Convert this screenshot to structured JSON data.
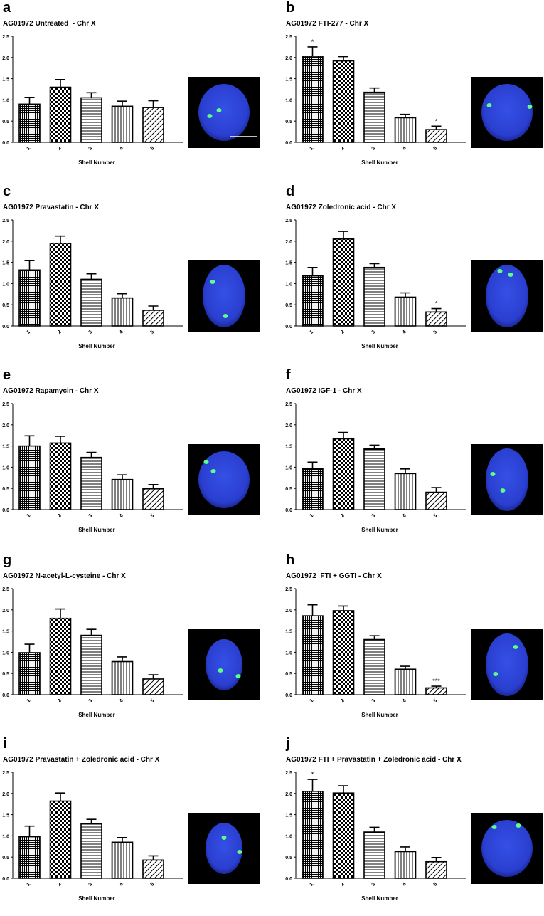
{
  "colors": {
    "bar_stroke": "#000000",
    "cell_background": "#000000",
    "nucleus": "#2a3fd0",
    "chromosome_signal": "#5cff8a"
  },
  "chart_data": [
    {
      "panel": "a",
      "type": "bar",
      "title": "AG01972 Untreated  - Chr X",
      "xlabel": "Shell Number",
      "ylabel": "",
      "ylim": [
        0,
        2.5
      ],
      "yticks": [
        "0.0",
        "0.5",
        "1.0",
        "1.5",
        "2.0",
        "2.5"
      ],
      "categories": [
        "1",
        "2",
        "3",
        "4",
        "5"
      ],
      "patterns": [
        "crosshatch",
        "checker",
        "horizontal",
        "vertical",
        "diagonal"
      ],
      "values": [
        0.9,
        1.3,
        1.05,
        0.85,
        0.82
      ],
      "errors": [
        0.16,
        0.18,
        0.12,
        0.12,
        0.16
      ],
      "annotations": [
        "",
        "",
        "",
        "",
        ""
      ],
      "image": {
        "scale_bar": true,
        "nucleus_shape": "round",
        "signals": [
          [
            0.43,
            0.47
          ],
          [
            0.3,
            0.55
          ]
        ]
      }
    },
    {
      "panel": "b",
      "type": "bar",
      "title": "AG01972 FTI-277 - Chr X",
      "xlabel": "Shell Number",
      "ylabel": "",
      "ylim": [
        0,
        2.5
      ],
      "yticks": [
        "0.0",
        "0.5",
        "1.0",
        "1.5",
        "2.0",
        "2.5"
      ],
      "categories": [
        "1",
        "2",
        "3",
        "4",
        "5"
      ],
      "patterns": [
        "crosshatch",
        "checker",
        "horizontal",
        "vertical",
        "diagonal"
      ],
      "values": [
        2.03,
        1.92,
        1.18,
        0.58,
        0.3
      ],
      "errors": [
        0.22,
        0.1,
        0.1,
        0.08,
        0.08
      ],
      "annotations": [
        "*",
        "",
        "",
        "",
        "*"
      ],
      "image": {
        "scale_bar": false,
        "nucleus_shape": "round",
        "signals": [
          [
            0.25,
            0.4
          ],
          [
            0.82,
            0.42
          ]
        ]
      }
    },
    {
      "panel": "c",
      "type": "bar",
      "title": "AG01972 Pravastatin - Chr X",
      "xlabel": "Shell Number",
      "ylabel": "",
      "ylim": [
        0,
        2.5
      ],
      "yticks": [
        "0.0",
        "0.5",
        "1.0",
        "1.5",
        "2.0",
        "2.5"
      ],
      "categories": [
        "1",
        "2",
        "3",
        "4",
        "5"
      ],
      "patterns": [
        "crosshatch",
        "checker",
        "horizontal",
        "vertical",
        "diagonal"
      ],
      "values": [
        1.32,
        1.95,
        1.1,
        0.66,
        0.37
      ],
      "errors": [
        0.22,
        0.17,
        0.13,
        0.1,
        0.1
      ],
      "annotations": [
        "",
        "",
        "",
        "",
        ""
      ],
      "image": {
        "scale_bar": false,
        "nucleus_shape": "oval",
        "signals": [
          [
            0.34,
            0.3
          ],
          [
            0.52,
            0.78
          ]
        ]
      }
    },
    {
      "panel": "d",
      "type": "bar",
      "title": "AG01972 Zoledronic acid - Chr X",
      "xlabel": "Shell Number",
      "ylabel": "",
      "ylim": [
        0,
        2.5
      ],
      "yticks": [
        "0.0",
        "0.5",
        "1.0",
        "1.5",
        "2.0",
        "2.5"
      ],
      "categories": [
        "1",
        "2",
        "3",
        "4",
        "5"
      ],
      "patterns": [
        "crosshatch",
        "checker",
        "horizontal",
        "vertical",
        "diagonal"
      ],
      "values": [
        1.18,
        2.05,
        1.38,
        0.68,
        0.33
      ],
      "errors": [
        0.2,
        0.18,
        0.09,
        0.1,
        0.08
      ],
      "annotations": [
        "",
        "",
        "",
        "",
        "*"
      ],
      "image": {
        "scale_bar": false,
        "nucleus_shape": "oval",
        "signals": [
          [
            0.55,
            0.2
          ],
          [
            0.4,
            0.15
          ]
        ]
      }
    },
    {
      "panel": "e",
      "type": "bar",
      "title": "AG01972 Rapamycin - Chr X",
      "xlabel": "Shell Number",
      "ylabel": "",
      "ylim": [
        0,
        2.5
      ],
      "yticks": [
        "0.0",
        "0.5",
        "1.0",
        "1.5",
        "2.0",
        "2.5"
      ],
      "categories": [
        "1",
        "2",
        "3",
        "4",
        "5"
      ],
      "patterns": [
        "crosshatch",
        "checker",
        "horizontal",
        "vertical",
        "diagonal"
      ],
      "values": [
        1.5,
        1.57,
        1.23,
        0.71,
        0.49
      ],
      "errors": [
        0.24,
        0.16,
        0.12,
        0.11,
        0.1
      ],
      "annotations": [
        "",
        "",
        "",
        "",
        ""
      ],
      "image": {
        "scale_bar": false,
        "nucleus_shape": "round",
        "signals": [
          [
            0.25,
            0.25
          ],
          [
            0.35,
            0.38
          ]
        ]
      }
    },
    {
      "panel": "f",
      "type": "bar",
      "title": "AG01972 IGF-1 - Chr X",
      "xlabel": "Shell Number",
      "ylabel": "",
      "ylim": [
        0,
        2.5
      ],
      "yticks": [
        "0.0",
        "0.5",
        "1.0",
        "1.5",
        "2.0",
        "2.5"
      ],
      "categories": [
        "1",
        "2",
        "3",
        "4",
        "5"
      ],
      "patterns": [
        "crosshatch",
        "checker",
        "horizontal",
        "vertical",
        "diagonal"
      ],
      "values": [
        0.96,
        1.67,
        1.43,
        0.85,
        0.41
      ],
      "errors": [
        0.16,
        0.15,
        0.09,
        0.11,
        0.11
      ],
      "annotations": [
        "",
        "",
        "",
        "",
        ""
      ],
      "image": {
        "scale_bar": false,
        "nucleus_shape": "oval",
        "signals": [
          [
            0.3,
            0.42
          ],
          [
            0.44,
            0.65
          ]
        ]
      }
    },
    {
      "panel": "g",
      "type": "bar",
      "title": "AG01972 N-acetyl-L-cysteine - Chr X",
      "xlabel": "Shell Number",
      "ylabel": "",
      "ylim": [
        0,
        2.5
      ],
      "yticks": [
        "0.0",
        "0.5",
        "1.0",
        "1.5",
        "2.0",
        "2.5"
      ],
      "categories": [
        "1",
        "2",
        "3",
        "4",
        "5"
      ],
      "patterns": [
        "crosshatch",
        "checker",
        "horizontal",
        "vertical",
        "diagonal"
      ],
      "values": [
        0.99,
        1.8,
        1.4,
        0.78,
        0.37
      ],
      "errors": [
        0.2,
        0.22,
        0.14,
        0.11,
        0.1
      ],
      "annotations": [
        "",
        "",
        "",
        "",
        ""
      ],
      "image": {
        "scale_bar": false,
        "nucleus_shape": "small",
        "signals": [
          [
            0.45,
            0.58
          ],
          [
            0.7,
            0.66
          ]
        ]
      }
    },
    {
      "panel": "h",
      "type": "bar",
      "title": "AG01972  FTI + GGTI - Chr X",
      "xlabel": "Shell Number",
      "ylabel": "",
      "ylim": [
        0,
        2.5
      ],
      "yticks": [
        "0.0",
        "0.5",
        "1.0",
        "1.5",
        "2.0",
        "2.5"
      ],
      "categories": [
        "1",
        "2",
        "3",
        "4",
        "5"
      ],
      "patterns": [
        "crosshatch",
        "checker",
        "horizontal",
        "vertical",
        "diagonal"
      ],
      "values": [
        1.86,
        1.98,
        1.3,
        0.6,
        0.16
      ],
      "errors": [
        0.26,
        0.11,
        0.09,
        0.07,
        0.04
      ],
      "annotations": [
        "",
        "",
        "",
        "",
        "***"
      ],
      "image": {
        "scale_bar": false,
        "nucleus_shape": "oval",
        "signals": [
          [
            0.62,
            0.25
          ],
          [
            0.34,
            0.63
          ]
        ]
      }
    },
    {
      "panel": "i",
      "type": "bar",
      "title": "AG01972 Pravastatin + Zoledronic acid - Chr X",
      "xlabel": "Shell Number",
      "ylabel": "",
      "ylim": [
        0,
        2.5
      ],
      "yticks": [
        "0.0",
        "0.5",
        "1.0",
        "1.5",
        "2.0",
        "2.5"
      ],
      "categories": [
        "1",
        "2",
        "3",
        "4",
        "5"
      ],
      "patterns": [
        "crosshatch",
        "checker",
        "horizontal",
        "vertical",
        "diagonal"
      ],
      "values": [
        0.98,
        1.82,
        1.28,
        0.85,
        0.43
      ],
      "errors": [
        0.25,
        0.19,
        0.11,
        0.11,
        0.1
      ],
      "annotations": [
        "",
        "",
        "",
        "",
        ""
      ],
      "image": {
        "scale_bar": false,
        "nucleus_shape": "small",
        "signals": [
          [
            0.5,
            0.35
          ],
          [
            0.72,
            0.55
          ]
        ]
      }
    },
    {
      "panel": "j",
      "type": "bar",
      "title": "AG01972 FTI + Pravastatin + Zoledronic acid - Chr X",
      "xlabel": "Shell Number",
      "ylabel": "",
      "ylim": [
        0,
        2.5
      ],
      "yticks": [
        "0.0",
        "0.5",
        "1.0",
        "1.5",
        "2.0",
        "2.5"
      ],
      "categories": [
        "1",
        "2",
        "3",
        "4",
        "5"
      ],
      "patterns": [
        "crosshatch",
        "checker",
        "horizontal",
        "vertical",
        "diagonal"
      ],
      "values": [
        2.05,
        2.01,
        1.09,
        0.63,
        0.39
      ],
      "errors": [
        0.28,
        0.17,
        0.11,
        0.11,
        0.1
      ],
      "annotations": [
        "*",
        "",
        "",
        "",
        ""
      ],
      "image": {
        "scale_bar": false,
        "nucleus_shape": "round",
        "signals": [
          [
            0.32,
            0.2
          ],
          [
            0.66,
            0.18
          ]
        ]
      }
    }
  ]
}
